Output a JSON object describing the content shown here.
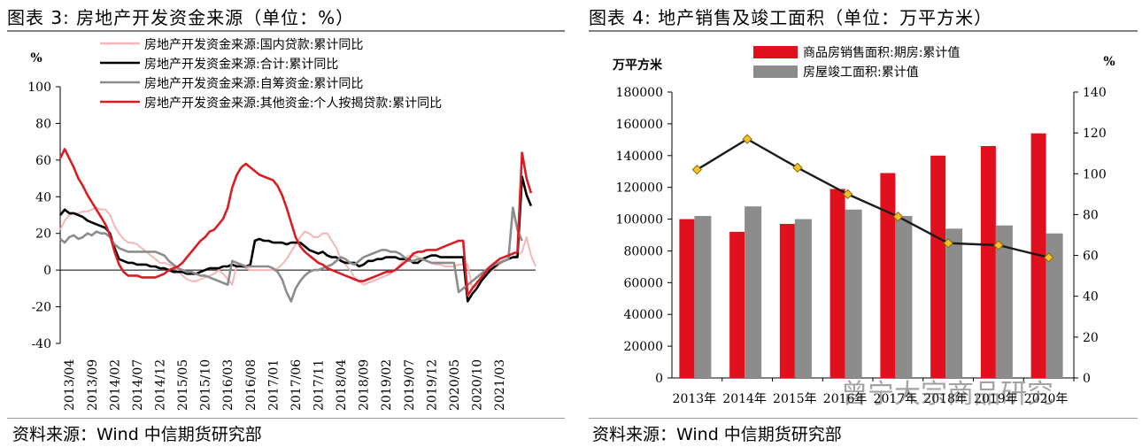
{
  "left": {
    "title": "图表 3:  房地产开发资金来源（单位：%）",
    "source": "资料来源：Wind 中信期货研究部",
    "chart_data": {
      "type": "line",
      "unit_label": "%",
      "ylim": [
        -40,
        100
      ],
      "yticks": [
        -40,
        -20,
        0,
        20,
        40,
        60,
        80,
        100
      ],
      "xticks": [
        "2013/04",
        "2013/09",
        "2014/02",
        "2014/07",
        "2014/12",
        "2015/05",
        "2015/10",
        "2016/03",
        "2016/08",
        "2017/01",
        "2017/06",
        "2017/11",
        "2018/04",
        "2018/09",
        "2019/02",
        "2019/07",
        "2019/12",
        "2020/05",
        "2020/10",
        "2021/03"
      ],
      "x_start": "2013/02",
      "legend_position": "top",
      "series": [
        {
          "name": "房地产开发资金来源:国内贷款:累计同比",
          "color": "#f4b6b6",
          "values": [
            22,
            27,
            30,
            31,
            31,
            32,
            32,
            33,
            34,
            33,
            33,
            30,
            24,
            20,
            17,
            15,
            15,
            14,
            12,
            10,
            8,
            6,
            4,
            4,
            3,
            2,
            0,
            -3,
            -5,
            -6,
            -6,
            -5,
            -4,
            -3,
            -2,
            0,
            -2,
            -5,
            -8,
            3,
            2,
            1,
            0,
            0,
            0,
            0,
            0,
            0,
            1,
            3,
            6,
            10,
            14,
            18,
            21,
            20,
            18,
            18,
            20,
            20,
            16,
            12,
            6,
            3,
            0,
            -4,
            -6,
            -8,
            -7,
            -6,
            -5,
            -4,
            -3,
            -2,
            0,
            3,
            6,
            8,
            8,
            7,
            6,
            5,
            4,
            3,
            3,
            2,
            2,
            2,
            3,
            3,
            3,
            -10,
            -8,
            -5,
            -3,
            -1,
            1,
            3,
            5,
            6,
            7,
            8,
            10,
            18,
            8,
            2
          ]
        },
        {
          "name": "房地产开发资金来源:合计:累计同比",
          "color": "#000000",
          "values": [
            30,
            33,
            31,
            31,
            30,
            29,
            27,
            26,
            25,
            24,
            23,
            20,
            12,
            6,
            5,
            4,
            4,
            3,
            3,
            3,
            2,
            2,
            1,
            1,
            0,
            -1,
            -1,
            -1,
            -2,
            -2,
            -2,
            -1,
            0,
            1,
            1,
            1,
            2,
            2,
            3,
            2,
            2,
            2,
            3,
            16,
            17,
            16,
            16,
            15,
            15,
            15,
            14,
            15,
            15,
            15,
            13,
            11,
            10,
            9,
            10,
            8,
            7,
            7,
            5,
            4,
            4,
            4,
            2,
            3,
            5,
            5,
            6,
            6,
            7,
            7,
            7,
            6,
            6,
            6,
            4,
            4,
            6,
            7,
            8,
            8,
            7,
            7,
            7,
            7,
            7,
            7,
            -17,
            -13,
            -10,
            -6,
            -3,
            0,
            2,
            4,
            5,
            6,
            7,
            7,
            51,
            41,
            35
          ]
        },
        {
          "name": "房地产开发资金来源:自筹资金:累计同比",
          "color": "#8c8c8c",
          "values": [
            17,
            15,
            18,
            19,
            17,
            18,
            20,
            19,
            21,
            20,
            20,
            18,
            14,
            12,
            11,
            10,
            10,
            10,
            10,
            10,
            10,
            10,
            9,
            8,
            5,
            3,
            1,
            0,
            -1,
            -1,
            -2,
            -3,
            -3,
            -4,
            -5,
            -6,
            -7,
            -8,
            5,
            4,
            3,
            2,
            2,
            2,
            2,
            2,
            2,
            1,
            -1,
            -5,
            -12,
            -17,
            -10,
            -6,
            -3,
            -1,
            0,
            0,
            1,
            2,
            3,
            5,
            7,
            6,
            4,
            3,
            5,
            7,
            8,
            9,
            10,
            11,
            11,
            10,
            10,
            9,
            7,
            5,
            5,
            6,
            6,
            5,
            4,
            4,
            4,
            4,
            4,
            4,
            -12,
            -10,
            -8,
            -6,
            -4,
            -2,
            0,
            2,
            3,
            4,
            5,
            6,
            34,
            22,
            16
          ]
        },
        {
          "name": "房地产开发资金来源:其他资金:个人按揭贷款:累计同比",
          "color": "#d81e24",
          "values": [
            61,
            66,
            61,
            56,
            50,
            46,
            41,
            37,
            33,
            29,
            25,
            19,
            10,
            3,
            -1,
            -3,
            -3,
            -3,
            -4,
            -4,
            -4,
            -4,
            -3,
            -2,
            0,
            1,
            2,
            4,
            7,
            10,
            13,
            16,
            18,
            21,
            22,
            25,
            28,
            34,
            45,
            52,
            56,
            58,
            56,
            54,
            52,
            51,
            50,
            49,
            46,
            41,
            34,
            26,
            18,
            13,
            10,
            8,
            6,
            4,
            3,
            1,
            0,
            -1,
            -2,
            -3,
            -4,
            -5,
            -6,
            -6,
            -5,
            -4,
            -3,
            -2,
            -1,
            -1,
            0,
            2,
            4,
            6,
            9,
            10,
            10,
            11,
            11,
            11,
            12,
            13,
            14,
            15,
            16,
            16,
            -14,
            -10,
            -7,
            -4,
            -1,
            2,
            4,
            6,
            7,
            8,
            9,
            10,
            64,
            50,
            42
          ]
        }
      ]
    }
  },
  "right": {
    "title": "图表 4:  地产销售及竣工面积（单位：万平方米）",
    "source": "资料来源：Wind 中信期货研究部",
    "watermark": "曾宁大宗商品研究",
    "chart_data": {
      "type": "bar",
      "left_axis_label": "万平方米",
      "right_axis_label": "%",
      "categories": [
        "2013年",
        "2014年",
        "2015年",
        "2016年",
        "2017年",
        "2018年",
        "2019年",
        "2020年"
      ],
      "ylim_left": [
        0,
        180000
      ],
      "yticks_left": [
        0,
        20000,
        40000,
        60000,
        80000,
        100000,
        120000,
        140000,
        160000,
        180000
      ],
      "ylim_right": [
        0,
        140
      ],
      "yticks_right": [
        0,
        20,
        40,
        60,
        80,
        100,
        120,
        140
      ],
      "legend_position": "top",
      "series": [
        {
          "name": "商品房销售面积:期房:累计值",
          "color": "#e0101e",
          "axis": "left",
          "values": [
            100000,
            92000,
            97000,
            119000,
            129000,
            140000,
            146000,
            154000
          ]
        },
        {
          "name": "房屋竣工面积:累计值",
          "color": "#8c8c8c",
          "axis": "left",
          "values": [
            102000,
            108000,
            100000,
            106000,
            102000,
            94000,
            96000,
            91000
          ]
        },
        {
          "name": "",
          "color": "#1a1a1a",
          "marker_color": "#f2c02d",
          "axis": "right",
          "kind": "line",
          "values": [
            102,
            117,
            103,
            90,
            79,
            66,
            65,
            59
          ]
        }
      ]
    }
  }
}
